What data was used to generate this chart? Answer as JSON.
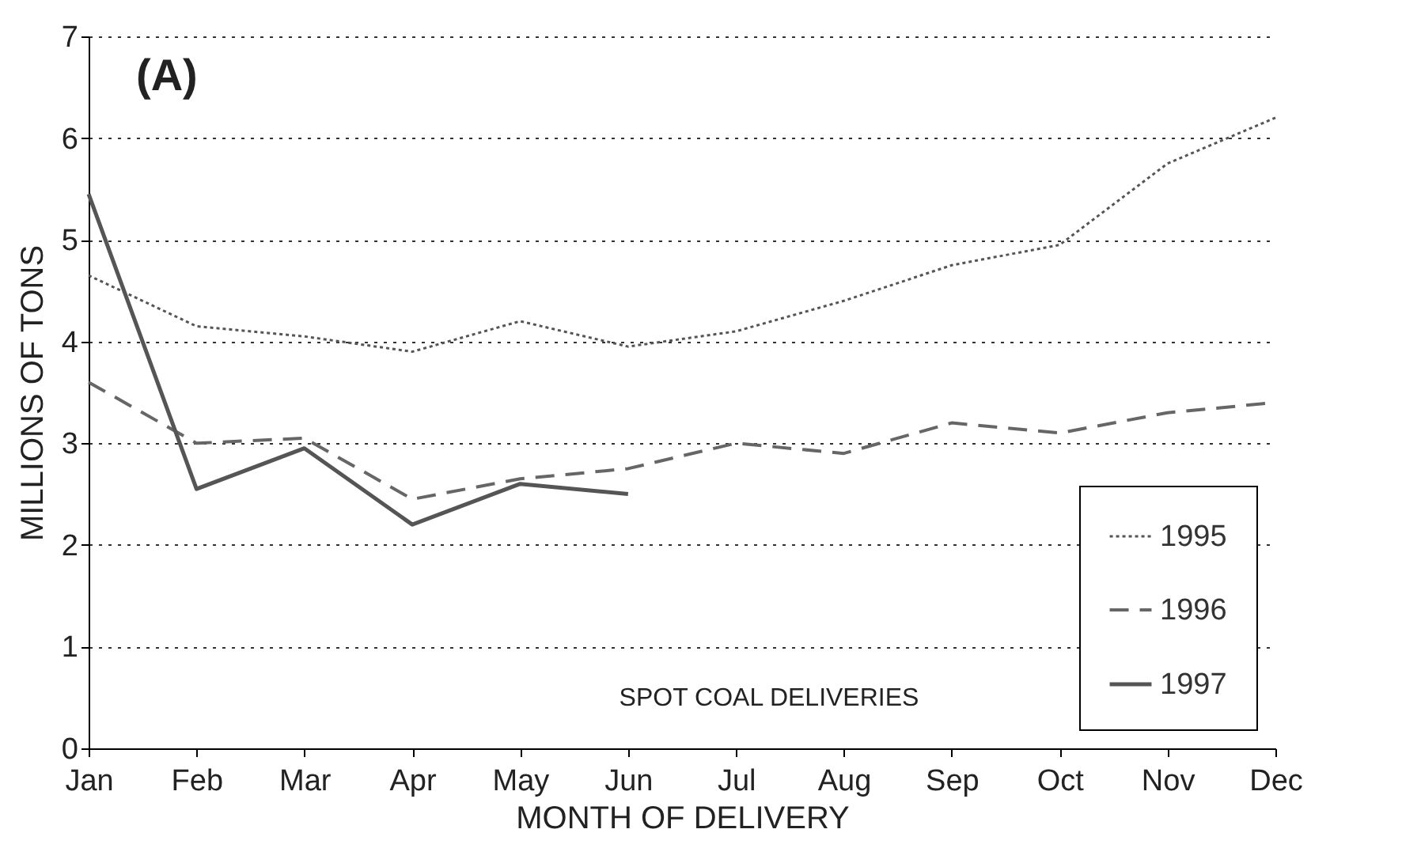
{
  "chart_data": {
    "type": "line",
    "title": "(A)",
    "xlabel": "MONTH OF DELIVERY",
    "ylabel": "MILLIONS OF TONS",
    "categories": [
      "Jan",
      "Feb",
      "Mar",
      "Apr",
      "May",
      "Jun",
      "Jul",
      "Aug",
      "Sep",
      "Oct",
      "Nov",
      "Dec"
    ],
    "series": [
      {
        "name": "1995",
        "color": "#555555",
        "line_style": "dotted",
        "values": [
          4.65,
          4.15,
          4.05,
          3.9,
          4.2,
          3.95,
          4.1,
          4.4,
          4.75,
          4.95,
          5.75,
          6.2
        ]
      },
      {
        "name": "1996",
        "color": "#666666",
        "line_style": "dashed",
        "values": [
          3.6,
          3.0,
          3.05,
          2.45,
          2.65,
          2.75,
          3.0,
          2.9,
          3.2,
          3.1,
          3.3,
          3.4
        ]
      },
      {
        "name": "1997",
        "color": "#555555",
        "line_style": "solid",
        "values": [
          5.45,
          2.55,
          2.95,
          2.2,
          2.6,
          2.5,
          null,
          null,
          null,
          null,
          null,
          null
        ]
      }
    ],
    "ylim": [
      0,
      7
    ],
    "yticks": [
      0,
      1,
      2,
      3,
      4,
      5,
      6,
      7
    ],
    "grid": "y",
    "legend": "bottom right",
    "marker": "none",
    "annotations": [
      "SPOT COAL DELIVERIES"
    ]
  }
}
